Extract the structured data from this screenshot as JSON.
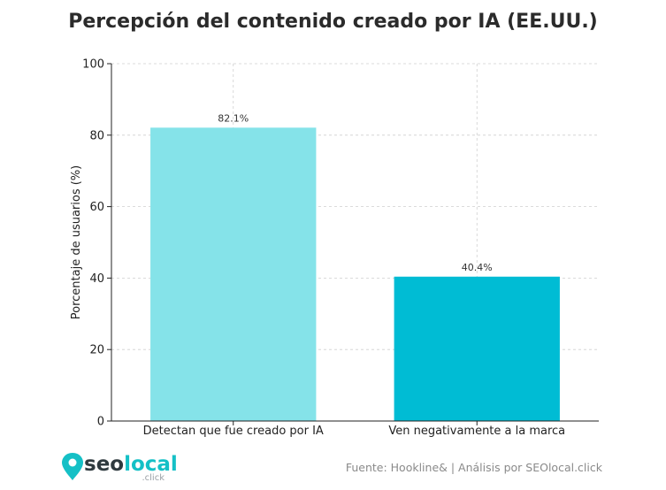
{
  "chart_data": {
    "type": "bar",
    "title": "Percepción del contenido creado por IA (EE.UU.)",
    "xlabel": "",
    "ylabel": "Porcentaje de usuarios (%)",
    "ylim": [
      0,
      100
    ],
    "yticks": [
      "0",
      "20",
      "40",
      "60",
      "80",
      "100"
    ],
    "grid": true,
    "categories": [
      "Detectan que fue creado por IA",
      "Ven negativamente a la marca"
    ],
    "values": [
      82.1,
      40.4
    ],
    "value_labels": [
      "82.1%",
      "40.4%"
    ],
    "bar_colors": [
      "#85e3e9",
      "#00bcd4"
    ]
  },
  "footer": {
    "source": "Fuente: Hookline& | Análisis por SEOlocal.click",
    "logo_seo": "seo",
    "logo_local": "local",
    "logo_sub": ".click",
    "logo_colors": {
      "seo": "#2f3a3f",
      "local": "#15c0c6",
      "pin": "#15c0c6"
    }
  }
}
